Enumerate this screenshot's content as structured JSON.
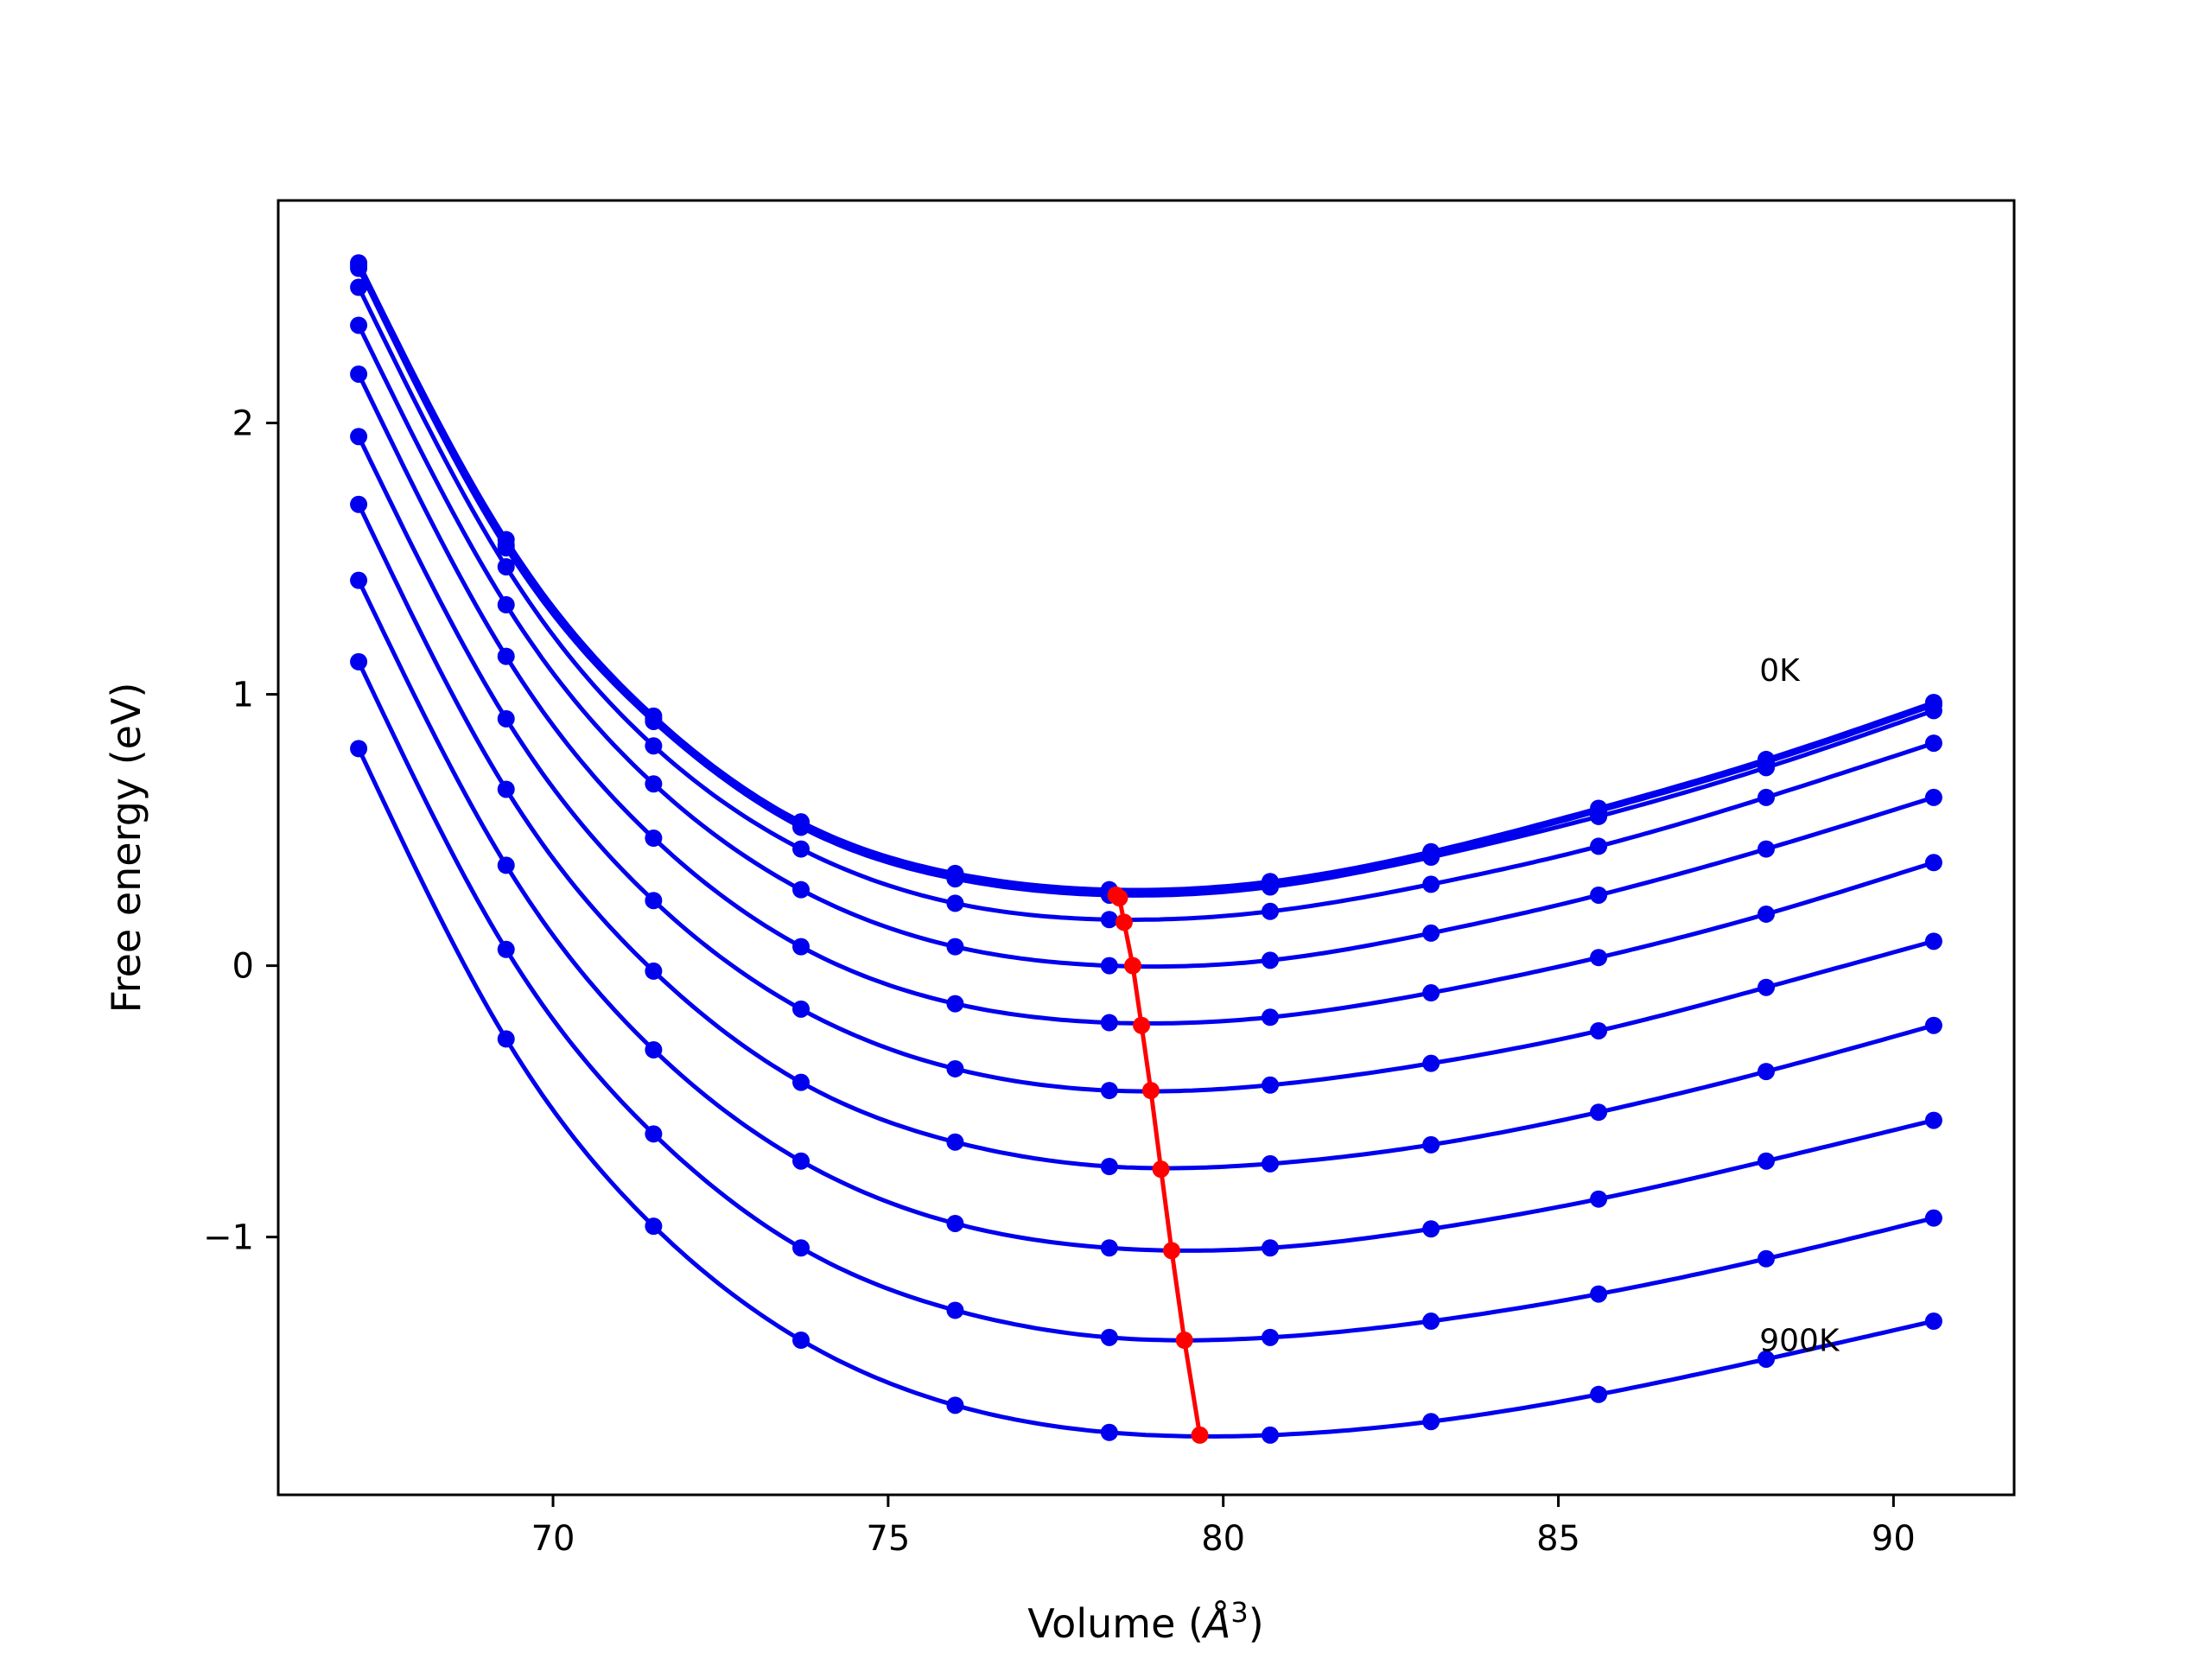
{
  "chart_data": {
    "type": "line",
    "xlabel": "Volume (",
    "xlabel_symbol": "Å",
    "xlabel_exp": "3",
    "xlabel_close": ")",
    "ylabel": "Free energy (eV)",
    "xlim": [
      65.9,
      91.8
    ],
    "ylim": [
      -1.95,
      2.82
    ],
    "xticks": [
      70,
      75,
      80,
      85,
      90
    ],
    "yticks": [
      -1,
      0,
      1,
      2
    ],
    "xtick_labels": [
      "70",
      "75",
      "80",
      "85",
      "90"
    ],
    "ytick_labels": [
      "−1",
      "0",
      "1",
      "2"
    ],
    "grid": false,
    "legend": "none",
    "colors": {
      "isotherm": "#0000ee",
      "minimum": "#ff0000"
    },
    "x": [
      67.1,
      69.3,
      71.5,
      73.7,
      76.0,
      78.3,
      80.7,
      83.1,
      85.6,
      88.1,
      90.6
    ],
    "series": [
      {
        "values": [
          2.59,
          1.57,
          0.92,
          0.53,
          0.34,
          0.28,
          0.31,
          0.42,
          0.58,
          0.76,
          0.97
        ]
      },
      {
        "values": [
          2.58,
          1.55,
          0.91,
          0.52,
          0.33,
          0.27,
          0.3,
          0.41,
          0.57,
          0.75,
          0.96
        ]
      },
      {
        "values": [
          2.57,
          1.54,
          0.9,
          0.51,
          0.32,
          0.26,
          0.29,
          0.4,
          0.55,
          0.73,
          0.94
        ]
      },
      {
        "values": [
          2.5,
          1.47,
          0.81,
          0.43,
          0.23,
          0.17,
          0.2,
          0.3,
          0.44,
          0.62,
          0.82
        ]
      },
      {
        "values": [
          2.36,
          1.33,
          0.67,
          0.28,
          0.07,
          0.0,
          0.02,
          0.12,
          0.26,
          0.43,
          0.62
        ]
      },
      {
        "values": [
          2.18,
          1.14,
          0.47,
          0.07,
          -0.14,
          -0.21,
          -0.19,
          -0.1,
          0.03,
          0.19,
          0.38
        ]
      },
      {
        "values": [
          1.95,
          0.91,
          0.24,
          -0.16,
          -0.38,
          -0.46,
          -0.44,
          -0.36,
          -0.24,
          -0.08,
          0.09
        ]
      },
      {
        "values": [
          1.7,
          0.65,
          -0.02,
          -0.43,
          -0.65,
          -0.74,
          -0.73,
          -0.66,
          -0.54,
          -0.39,
          -0.22
        ]
      },
      {
        "values": [
          1.42,
          0.37,
          -0.31,
          -0.72,
          -0.95,
          -1.04,
          -1.04,
          -0.97,
          -0.86,
          -0.72,
          -0.57
        ]
      },
      {
        "values": [
          1.12,
          0.06,
          -0.62,
          -1.04,
          -1.27,
          -1.37,
          -1.37,
          -1.31,
          -1.21,
          -1.08,
          -0.93
        ]
      },
      {
        "values": [
          0.8,
          -0.27,
          -0.96,
          -1.38,
          -1.62,
          -1.72,
          -1.73,
          -1.68,
          -1.58,
          -1.45,
          -1.31
        ]
      }
    ],
    "minimum_line": {
      "x": [
        78.4,
        78.45,
        78.52,
        78.65,
        78.78,
        78.92,
        79.07,
        79.23,
        79.42,
        79.65
      ],
      "y": [
        0.26,
        0.25,
        0.16,
        0.0,
        -0.22,
        -0.46,
        -0.75,
        -1.05,
        -1.38,
        -1.73
      ]
    },
    "annotations": [
      {
        "text": "0K",
        "x": 88.0,
        "y": 1.05
      },
      {
        "text": "900K",
        "x": 88.0,
        "y": -1.42
      }
    ]
  }
}
